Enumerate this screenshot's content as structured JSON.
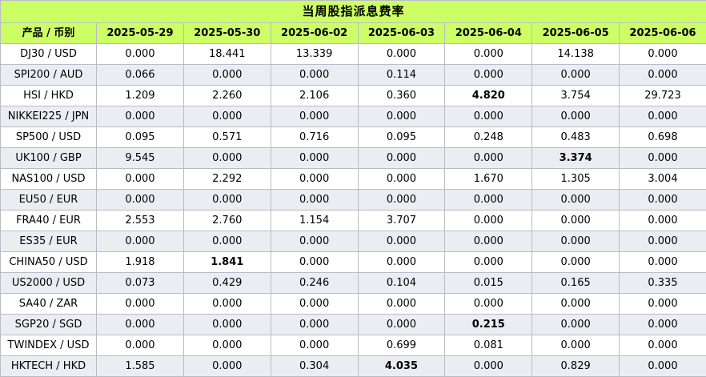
{
  "title": "当周股指派息费率",
  "header": {
    "product_col": "产品 / 币别",
    "dates": [
      "2025-05-29",
      "2025-05-30",
      "2025-06-02",
      "2025-06-03",
      "2025-06-04",
      "2025-06-05",
      "2025-06-06"
    ]
  },
  "rows": [
    {
      "product": "DJ30 / USD",
      "values": [
        "0.000",
        "18.441",
        "13.339",
        "0.000",
        "0.000",
        "14.138",
        "0.000"
      ],
      "bold": []
    },
    {
      "product": "SPI200 / AUD",
      "values": [
        "0.066",
        "0.000",
        "0.000",
        "0.114",
        "0.000",
        "0.000",
        "0.000"
      ],
      "bold": []
    },
    {
      "product": "HSI / HKD",
      "values": [
        "1.209",
        "2.260",
        "2.106",
        "0.360",
        "4.820",
        "3.754",
        "29.723"
      ],
      "bold": [
        4
      ]
    },
    {
      "product": "NIKKEI225 / JPN",
      "values": [
        "0.000",
        "0.000",
        "0.000",
        "0.000",
        "0.000",
        "0.000",
        "0.000"
      ],
      "bold": []
    },
    {
      "product": "SP500 / USD",
      "values": [
        "0.095",
        "0.571",
        "0.716",
        "0.095",
        "0.248",
        "0.483",
        "0.698"
      ],
      "bold": []
    },
    {
      "product": "UK100 / GBP",
      "values": [
        "9.545",
        "0.000",
        "0.000",
        "0.000",
        "0.000",
        "3.374",
        "0.000"
      ],
      "bold": [
        5
      ]
    },
    {
      "product": "NAS100 / USD",
      "values": [
        "0.000",
        "2.292",
        "0.000",
        "0.000",
        "1.670",
        "1.305",
        "3.004"
      ],
      "bold": []
    },
    {
      "product": "EU50 / EUR",
      "values": [
        "0.000",
        "0.000",
        "0.000",
        "0.000",
        "0.000",
        "0.000",
        "0.000"
      ],
      "bold": []
    },
    {
      "product": "FRA40 / EUR",
      "values": [
        "2.553",
        "2.760",
        "1.154",
        "3.707",
        "0.000",
        "0.000",
        "0.000"
      ],
      "bold": []
    },
    {
      "product": "ES35 / EUR",
      "values": [
        "0.000",
        "0.000",
        "0.000",
        "0.000",
        "0.000",
        "0.000",
        "0.000"
      ],
      "bold": []
    },
    {
      "product": "CHINA50 / USD",
      "values": [
        "1.918",
        "1.841",
        "0.000",
        "0.000",
        "0.000",
        "0.000",
        "0.000"
      ],
      "bold": [
        1
      ]
    },
    {
      "product": "US2000 / USD",
      "values": [
        "0.073",
        "0.429",
        "0.246",
        "0.104",
        "0.015",
        "0.165",
        "0.335"
      ],
      "bold": []
    },
    {
      "product": "SA40 / ZAR",
      "values": [
        "0.000",
        "0.000",
        "0.000",
        "0.000",
        "0.000",
        "0.000",
        "0.000"
      ],
      "bold": []
    },
    {
      "product": "SGP20 / SGD",
      "values": [
        "0.000",
        "0.000",
        "0.000",
        "0.000",
        "0.215",
        "0.000",
        "0.000"
      ],
      "bold": [
        4
      ]
    },
    {
      "product": "TWINDEX / USD",
      "values": [
        "0.000",
        "0.000",
        "0.000",
        "0.699",
        "0.081",
        "0.000",
        "0.000"
      ],
      "bold": []
    },
    {
      "product": "HKTECH / HKD",
      "values": [
        "1.585",
        "0.000",
        "0.304",
        "4.035",
        "0.000",
        "0.829",
        "0.000"
      ],
      "bold": [
        3
      ]
    }
  ]
}
